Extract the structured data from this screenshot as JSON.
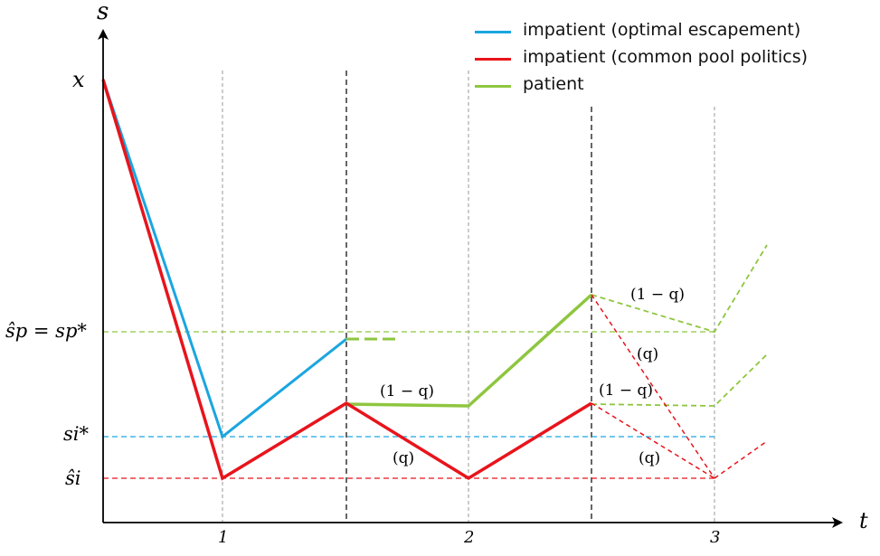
{
  "legend": [
    {
      "label": "impatient (optimal escapement)",
      "color": "#1aa6e0"
    },
    {
      "label": "impatient (common pool politics)",
      "color": "#e8141c"
    },
    {
      "label": "patient",
      "color": "#8ec63f"
    }
  ],
  "axes": {
    "y_label": "s",
    "x_label": "t",
    "x_ticks": [
      "1",
      "2",
      "3"
    ]
  },
  "y_marks": {
    "x": "x",
    "s_p": "ŝp = sp*",
    "s_i_star": "si*",
    "s_i_hat": "ŝi"
  },
  "branch_labels": {
    "one_minus_q": "(1 − q)",
    "q": "(q)"
  },
  "colors": {
    "blue": "#1aa6e0",
    "red": "#e8141c",
    "green": "#8ec63f",
    "grey": "#9a9a9a",
    "black": "#000000"
  }
}
